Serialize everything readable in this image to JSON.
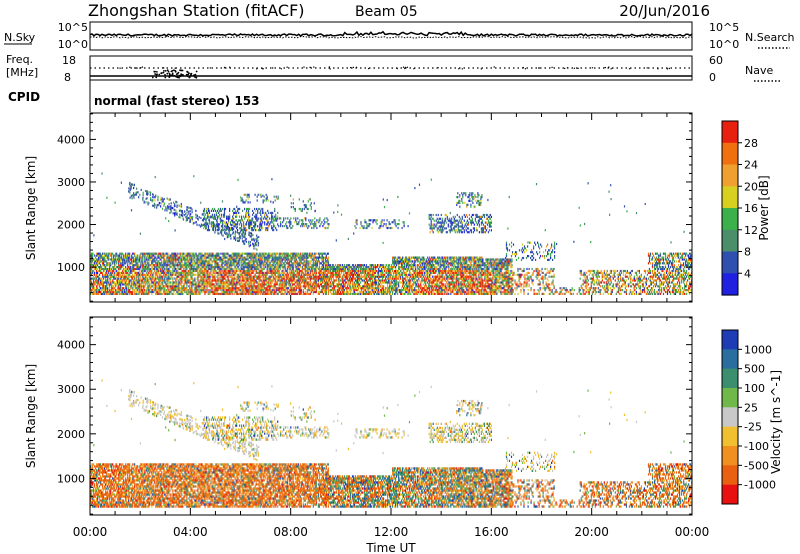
{
  "header": {
    "station": "Zhongshan Station (fitACF)",
    "beam": "Beam 05",
    "date": "20/Jun/2016"
  },
  "top_panels": {
    "nsky_label": "N.Sky",
    "nsearch_label": "N.Search",
    "nsky_ticks": [
      "10^5",
      "10^0"
    ],
    "nsearch_ticks": [
      "10^5",
      "10^0"
    ],
    "freq_label_1": "Freq.",
    "freq_label_2": "[MHz]",
    "freq_ticks": [
      "18",
      "8"
    ],
    "nave_label": "Nave",
    "nave_ticks": [
      "60",
      "0"
    ],
    "cpid_label": "CPID",
    "cpid_text": "normal (fast stereo) 153"
  },
  "chart_data": [
    {
      "type": "heatmap",
      "name": "power",
      "ylabel": "Slant Range [km]",
      "ylim": [
        180,
        4620
      ],
      "yticks": [
        1000,
        2000,
        3000,
        4000
      ],
      "xlim": [
        0,
        24
      ],
      "colorbar_label": "Power [dB]",
      "colorbar_ticks": [
        "4",
        "8",
        "12",
        "16",
        "20",
        "24",
        "28"
      ],
      "colors": [
        "#2020e0",
        "#3050b0",
        "#4a8f6a",
        "#3cb04a",
        "#d8d020",
        "#f0a030",
        "#f07010",
        "#e82010"
      ]
    },
    {
      "type": "heatmap",
      "name": "velocity",
      "ylabel": "Slant Range [km]",
      "ylim": [
        180,
        4620
      ],
      "yticks": [
        1000,
        2000,
        3000,
        4000
      ],
      "xlim": [
        0,
        24
      ],
      "colorbar_label": "Velocity [m s^-1]",
      "colorbar_ticks": [
        "1000",
        "500",
        "100",
        "25",
        "-25",
        "-100",
        "-500",
        "-1000"
      ],
      "colors": [
        "#1e3cb4",
        "#2a6ea0",
        "#3c8f6e",
        "#70b84a",
        "#c8c8c8",
        "#f0c030",
        "#f09020",
        "#e86010",
        "#e81010"
      ]
    }
  ],
  "x_axis": {
    "ticks": [
      "00:00",
      "04:00",
      "08:00",
      "12:00",
      "16:00",
      "20:00",
      "00:00"
    ],
    "label": "Time UT"
  }
}
